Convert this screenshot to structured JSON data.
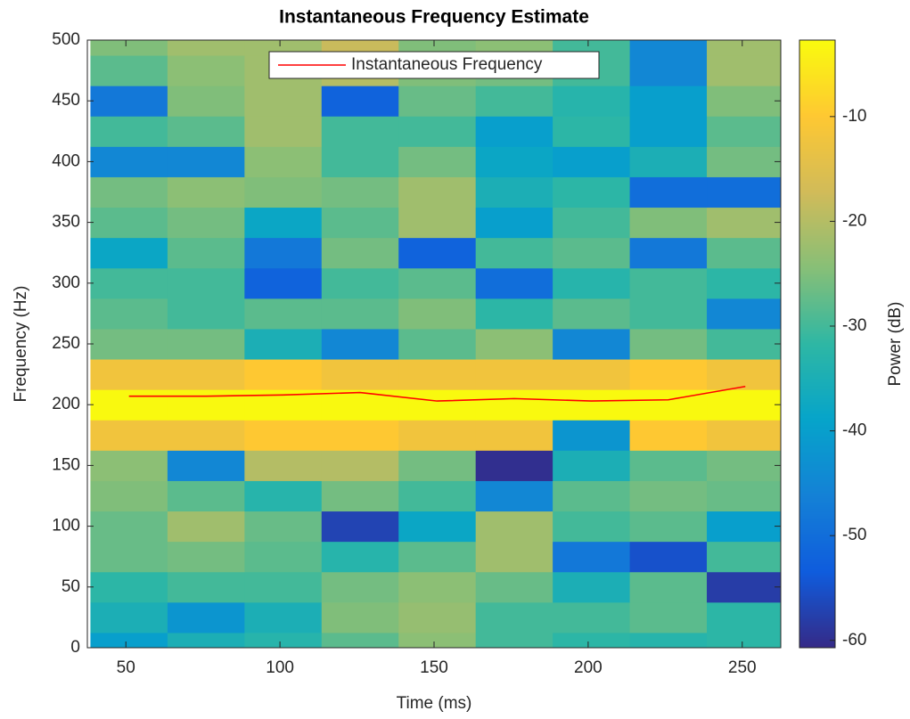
{
  "chart_data": {
    "type": "heatmap",
    "title": "Instantaneous Frequency Estimate",
    "x_label": "Time (ms)",
    "y_label": "Frequency (Hz)",
    "colorbar_label": "Power (dB)",
    "x": [
      51,
      76,
      101,
      126,
      151,
      176,
      201,
      226,
      251
    ],
    "y": [
      0,
      25,
      50,
      75,
      100,
      125,
      150,
      175,
      200,
      225,
      250,
      275,
      300,
      325,
      350,
      375,
      400,
      425,
      450,
      475,
      500
    ],
    "z": [
      [
        -40,
        -35,
        -33,
        -28,
        -24,
        -30,
        -32,
        -33,
        -32
      ],
      [
        -35,
        -42,
        -35,
        -25,
        -23,
        -30,
        -30,
        -28,
        -32
      ],
      [
        -32,
        -30,
        -30,
        -26,
        -24,
        -27,
        -35,
        -28,
        -58
      ],
      [
        -27,
        -26,
        -28,
        -33,
        -28,
        -22,
        -48,
        -55,
        -30
      ],
      [
        -27,
        -22,
        -27,
        -57,
        -38,
        -22,
        -30,
        -28,
        -40
      ],
      [
        -25,
        -28,
        -33,
        -26,
        -30,
        -45,
        -28,
        -26,
        -27
      ],
      [
        -24,
        -45,
        -20,
        -20,
        -26,
        -60,
        -35,
        -28,
        -26
      ],
      [
        -12,
        -12,
        -10,
        -10,
        -12,
        -12,
        -42,
        -10,
        -12
      ],
      [
        -3,
        -3,
        -3,
        -3,
        -3,
        -3,
        -3,
        -3,
        -3
      ],
      [
        -12,
        -12,
        -10,
        -12,
        -12,
        -12,
        -12,
        -10,
        -12
      ],
      [
        -26,
        -26,
        -35,
        -45,
        -28,
        -24,
        -45,
        -26,
        -30
      ],
      [
        -28,
        -30,
        -28,
        -28,
        -25,
        -32,
        -28,
        -30,
        -45
      ],
      [
        -30,
        -30,
        -52,
        -30,
        -28,
        -50,
        -33,
        -30,
        -32
      ],
      [
        -38,
        -28,
        -48,
        -26,
        -52,
        -30,
        -28,
        -48,
        -28
      ],
      [
        -28,
        -26,
        -38,
        -28,
        -22,
        -40,
        -30,
        -25,
        -22
      ],
      [
        -26,
        -24,
        -25,
        -26,
        -22,
        -35,
        -32,
        -50,
        -50
      ],
      [
        -45,
        -45,
        -24,
        -30,
        -26,
        -38,
        -40,
        -35,
        -26
      ],
      [
        -30,
        -28,
        -22,
        -30,
        -30,
        -40,
        -32,
        -40,
        -28
      ],
      [
        -48,
        -25,
        -22,
        -52,
        -27,
        -30,
        -33,
        -40,
        -25
      ],
      [
        -28,
        -24,
        -22,
        -20,
        -25,
        -26,
        -30,
        -45,
        -22
      ],
      [
        -25,
        -22,
        -22,
        -18,
        -25,
        -24,
        -30,
        -45,
        -22
      ]
    ],
    "colormap": [
      "#352a87",
      "#0f5cdd",
      "#1481d6",
      "#06a4ca",
      "#2eb7a4",
      "#87bf77",
      "#d1bb59",
      "#fec832",
      "#f9fb0e"
    ],
    "series": [
      {
        "name": "Instantaneous Frequency",
        "color": "#ff0000",
        "values": [
          207,
          207,
          208,
          210,
          203,
          205,
          203,
          204,
          215
        ]
      }
    ],
    "xlim": [
      37.5,
      262.5
    ],
    "ylim": [
      0,
      500
    ],
    "clim": [
      -60.7,
      -2.7
    ],
    "xticks": [
      50,
      100,
      150,
      200,
      250
    ],
    "yticks": [
      0,
      50,
      100,
      150,
      200,
      250,
      300,
      350,
      400,
      450,
      500
    ],
    "cticks": [
      -60,
      -50,
      -40,
      -30,
      -20,
      -10
    ],
    "legend": "north"
  }
}
